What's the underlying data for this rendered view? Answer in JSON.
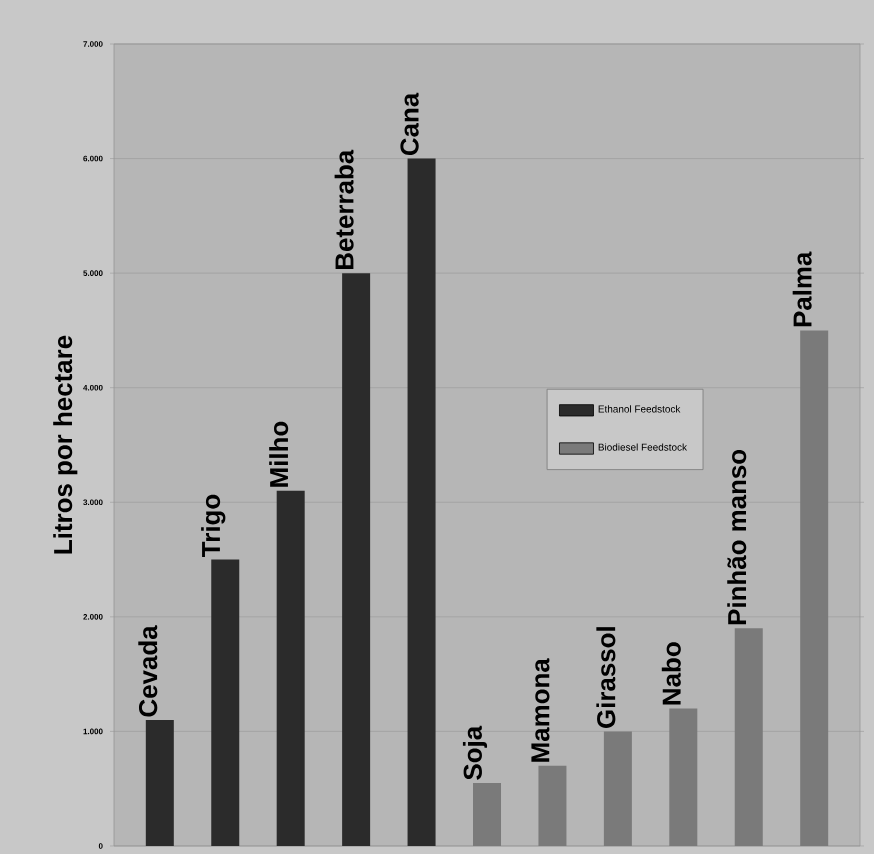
{
  "chart_data": {
    "type": "bar",
    "ylabel": "Litros por hectare",
    "categories": [
      "Cevada",
      "Trigo",
      "Milho",
      "Beterraba",
      "Cana",
      "Soja",
      "Mamona",
      "Girassol",
      "Nabo",
      "Pinhão manso",
      "Palma"
    ],
    "series": [
      {
        "name": "Ethanol Feedstock",
        "color": "#2b2b2b",
        "values": [
          1100,
          2500,
          3100,
          5000,
          6000,
          null,
          null,
          null,
          null,
          null,
          null
        ]
      },
      {
        "name": "Biodiesel Feedstock",
        "color": "#7a7a7a",
        "values": [
          null,
          null,
          null,
          null,
          null,
          550,
          700,
          1000,
          1200,
          1900,
          4500
        ]
      }
    ],
    "ylim": [
      0,
      7000
    ],
    "yticks": [
      0,
      {
        "value": 1000,
        "label": "1.000"
      },
      {
        "value": 2000,
        "label": "2.000"
      },
      {
        "value": 3000,
        "label": "3.000"
      },
      {
        "value": 4000,
        "label": "4.000"
      },
      {
        "value": 5000,
        "label": "5.000"
      },
      {
        "value": 6000,
        "label": "6.000"
      },
      {
        "value": 7000,
        "label": "7.000"
      }
    ],
    "grid": "y",
    "legend": "right"
  }
}
